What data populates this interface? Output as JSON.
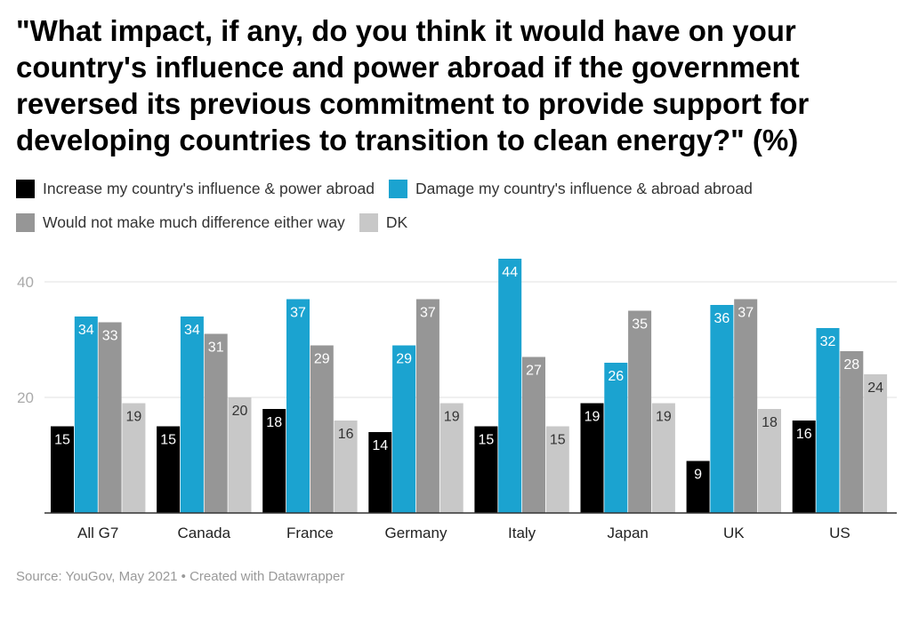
{
  "title": "\"What impact, if any, do you think it would have on your country's influence and power abroad if the government reversed its previous commitment to provide support for developing countries to transition to clean energy?\" (%)",
  "source": "Source: YouGov, May 2021 • Created with Datawrapper",
  "colors": {
    "increase": "#000000",
    "damage": "#1ba3d0",
    "no_difference": "#969696",
    "dk": "#c8c8c8"
  },
  "chart_data": {
    "type": "bar",
    "categories": [
      "All G7",
      "Canada",
      "France",
      "Germany",
      "Italy",
      "Japan",
      "UK",
      "US"
    ],
    "series": [
      {
        "name": "Increase my country's influence & power abroad",
        "color": "#000000",
        "values": [
          15,
          15,
          18,
          14,
          15,
          19,
          9,
          16
        ]
      },
      {
        "name": "Damage my country's influence & abroad abroad",
        "color": "#1ba3d0",
        "values": [
          34,
          34,
          37,
          29,
          44,
          26,
          36,
          32
        ]
      },
      {
        "name": "Would not make much difference either way",
        "color": "#969696",
        "values": [
          33,
          31,
          29,
          37,
          27,
          35,
          37,
          28
        ]
      },
      {
        "name": "DK",
        "color": "#c8c8c8",
        "values": [
          19,
          20,
          16,
          19,
          15,
          19,
          18,
          24
        ]
      }
    ],
    "yticks": [
      20,
      40
    ],
    "ylim": [
      0,
      44
    ],
    "grid": true,
    "legend": "top-left"
  }
}
